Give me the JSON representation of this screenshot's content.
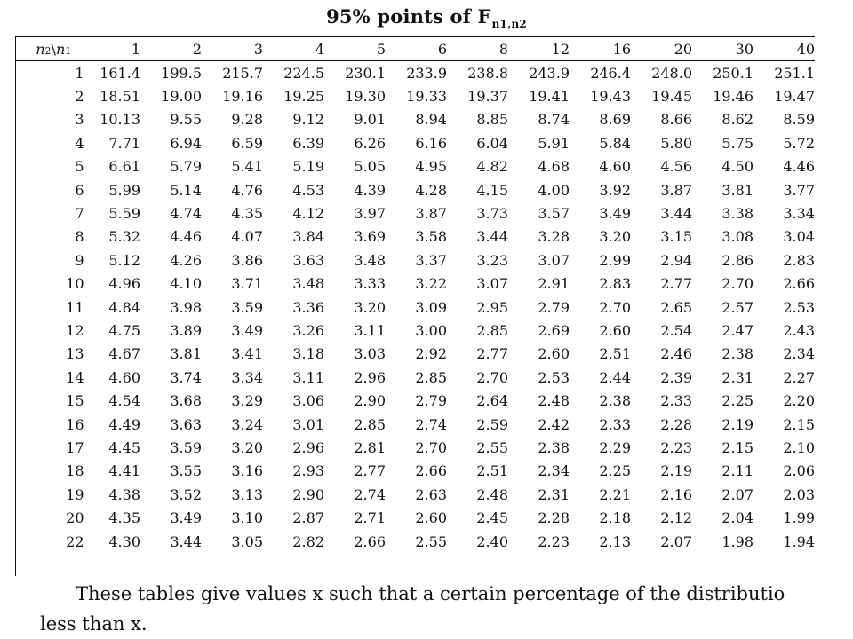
{
  "title": {
    "prefix": "95% points of F",
    "subscript": "n1,n2"
  },
  "table": {
    "corner": {
      "a": "n",
      "a_sub": "2",
      "sep": "\\",
      "b": "n",
      "b_sub": "1"
    },
    "columns": [
      "1",
      "2",
      "3",
      "4",
      "5",
      "6",
      "8",
      "12",
      "16",
      "20",
      "30",
      "40"
    ],
    "rows": [
      {
        "n2": "1",
        "values": [
          "161.4",
          "199.5",
          "215.7",
          "224.5",
          "230.1",
          "233.9",
          "238.8",
          "243.9",
          "246.4",
          "248.0",
          "250.1",
          "251.1"
        ]
      },
      {
        "n2": "2",
        "values": [
          "18.51",
          "19.00",
          "19.16",
          "19.25",
          "19.30",
          "19.33",
          "19.37",
          "19.41",
          "19.43",
          "19.45",
          "19.46",
          "19.47"
        ]
      },
      {
        "n2": "3",
        "values": [
          "10.13",
          "9.55",
          "9.28",
          "9.12",
          "9.01",
          "8.94",
          "8.85",
          "8.74",
          "8.69",
          "8.66",
          "8.62",
          "8.59"
        ]
      },
      {
        "n2": "4",
        "values": [
          "7.71",
          "6.94",
          "6.59",
          "6.39",
          "6.26",
          "6.16",
          "6.04",
          "5.91",
          "5.84",
          "5.80",
          "5.75",
          "5.72"
        ]
      },
      {
        "n2": "5",
        "values": [
          "6.61",
          "5.79",
          "5.41",
          "5.19",
          "5.05",
          "4.95",
          "4.82",
          "4.68",
          "4.60",
          "4.56",
          "4.50",
          "4.46"
        ]
      },
      {
        "n2": "6",
        "values": [
          "5.99",
          "5.14",
          "4.76",
          "4.53",
          "4.39",
          "4.28",
          "4.15",
          "4.00",
          "3.92",
          "3.87",
          "3.81",
          "3.77"
        ]
      },
      {
        "n2": "7",
        "values": [
          "5.59",
          "4.74",
          "4.35",
          "4.12",
          "3.97",
          "3.87",
          "3.73",
          "3.57",
          "3.49",
          "3.44",
          "3.38",
          "3.34"
        ]
      },
      {
        "n2": "8",
        "values": [
          "5.32",
          "4.46",
          "4.07",
          "3.84",
          "3.69",
          "3.58",
          "3.44",
          "3.28",
          "3.20",
          "3.15",
          "3.08",
          "3.04"
        ]
      },
      {
        "n2": "9",
        "values": [
          "5.12",
          "4.26",
          "3.86",
          "3.63",
          "3.48",
          "3.37",
          "3.23",
          "3.07",
          "2.99",
          "2.94",
          "2.86",
          "2.83"
        ]
      },
      {
        "n2": "10",
        "values": [
          "4.96",
          "4.10",
          "3.71",
          "3.48",
          "3.33",
          "3.22",
          "3.07",
          "2.91",
          "2.83",
          "2.77",
          "2.70",
          "2.66"
        ]
      },
      {
        "n2": "11",
        "values": [
          "4.84",
          "3.98",
          "3.59",
          "3.36",
          "3.20",
          "3.09",
          "2.95",
          "2.79",
          "2.70",
          "2.65",
          "2.57",
          "2.53"
        ]
      },
      {
        "n2": "12",
        "values": [
          "4.75",
          "3.89",
          "3.49",
          "3.26",
          "3.11",
          "3.00",
          "2.85",
          "2.69",
          "2.60",
          "2.54",
          "2.47",
          "2.43"
        ]
      },
      {
        "n2": "13",
        "values": [
          "4.67",
          "3.81",
          "3.41",
          "3.18",
          "3.03",
          "2.92",
          "2.77",
          "2.60",
          "2.51",
          "2.46",
          "2.38",
          "2.34"
        ]
      },
      {
        "n2": "14",
        "values": [
          "4.60",
          "3.74",
          "3.34",
          "3.11",
          "2.96",
          "2.85",
          "2.70",
          "2.53",
          "2.44",
          "2.39",
          "2.31",
          "2.27"
        ]
      },
      {
        "n2": "15",
        "values": [
          "4.54",
          "3.68",
          "3.29",
          "3.06",
          "2.90",
          "2.79",
          "2.64",
          "2.48",
          "2.38",
          "2.33",
          "2.25",
          "2.20"
        ]
      },
      {
        "n2": "16",
        "values": [
          "4.49",
          "3.63",
          "3.24",
          "3.01",
          "2.85",
          "2.74",
          "2.59",
          "2.42",
          "2.33",
          "2.28",
          "2.19",
          "2.15"
        ]
      },
      {
        "n2": "17",
        "values": [
          "4.45",
          "3.59",
          "3.20",
          "2.96",
          "2.81",
          "2.70",
          "2.55",
          "2.38",
          "2.29",
          "2.23",
          "2.15",
          "2.10"
        ]
      },
      {
        "n2": "18",
        "values": [
          "4.41",
          "3.55",
          "3.16",
          "2.93",
          "2.77",
          "2.66",
          "2.51",
          "2.34",
          "2.25",
          "2.19",
          "2.11",
          "2.06"
        ]
      },
      {
        "n2": "19",
        "values": [
          "4.38",
          "3.52",
          "3.13",
          "2.90",
          "2.74",
          "2.63",
          "2.48",
          "2.31",
          "2.21",
          "2.16",
          "2.07",
          "2.03"
        ]
      },
      {
        "n2": "20",
        "values": [
          "4.35",
          "3.49",
          "3.10",
          "2.87",
          "2.71",
          "2.60",
          "2.45",
          "2.28",
          "2.18",
          "2.12",
          "2.04",
          "1.99"
        ]
      },
      {
        "n2": "22",
        "values": [
          "4.30",
          "3.44",
          "3.05",
          "2.82",
          "2.66",
          "2.55",
          "2.40",
          "2.23",
          "2.13",
          "2.07",
          "1.98",
          "1.94"
        ]
      }
    ]
  },
  "note": {
    "line1": "These tables give values x such that a certain percentage of the distributio",
    "line2": "less than x."
  }
}
